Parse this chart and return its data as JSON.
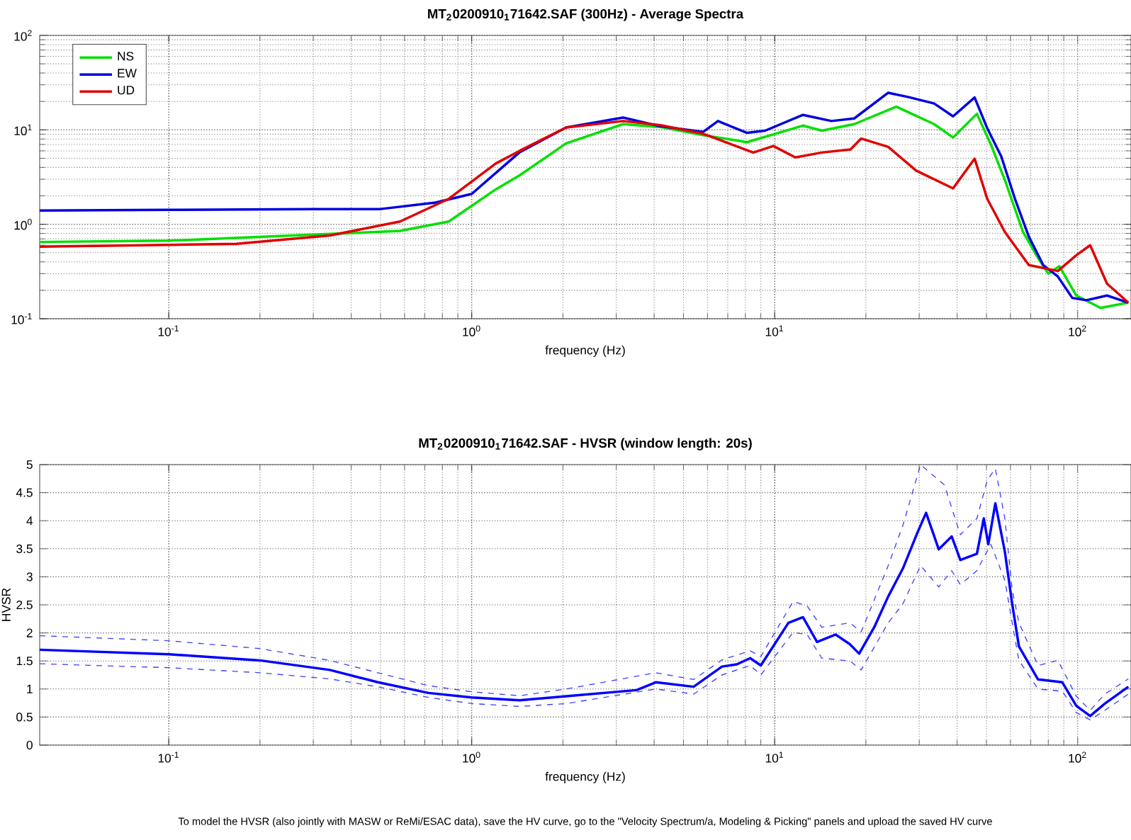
{
  "chart_data": [
    {
      "type": "line",
      "title": "MT$_{2}$0200910$_{1}$71642.SAF (300Hz) - Average Spectra",
      "xlabel": "frequency (Hz)",
      "log": "xy",
      "grid": true,
      "legend": "top left",
      "xlim": [
        0.0375,
        150
      ],
      "ylim": [
        0.1,
        100
      ],
      "xticks": [
        {
          "value": 0.1,
          "label": "10$^{-1}$"
        },
        {
          "value": 1,
          "label": "10$^{0}$"
        },
        {
          "value": 10,
          "label": "10$^{1}$"
        },
        {
          "value": 100,
          "label": "10$^{2}$"
        }
      ],
      "yticks": [
        {
          "value": 0.1,
          "label": "10$^{-1}$"
        },
        {
          "value": 1,
          "label": "10$^{0}$"
        },
        {
          "value": 10,
          "label": "10$^{1}$"
        },
        {
          "value": 100,
          "label": "10$^{2}$"
        }
      ],
      "series": [
        {
          "name": "NS",
          "color": "#00e000",
          "line_style": "solid",
          "x": [
            0.0375,
            0.1,
            0.34,
            0.58,
            0.84,
            1.2,
            1.44,
            2.05,
            3.16,
            4.2,
            5.8,
            8.1,
            12.4,
            14.3,
            18.3,
            25.2,
            33.6,
            38.8,
            46.5,
            51.7,
            57.5,
            66,
            74,
            80,
            87,
            99,
            119,
            147
          ],
          "values": [
            0.65,
            0.67,
            0.79,
            0.85,
            1.07,
            2.34,
            3.3,
            7.2,
            11.5,
            10.7,
            8.8,
            7.4,
            11.1,
            9.8,
            11.5,
            17.6,
            11.5,
            8.3,
            14.8,
            7,
            2.95,
            0.83,
            0.44,
            0.3,
            0.36,
            0.176,
            0.13,
            0.148
          ]
        },
        {
          "name": "EW",
          "color": "#0000e0",
          "line_style": "solid",
          "x": [
            0.0375,
            0.1,
            0.3,
            0.5,
            0.76,
            1.0,
            1.44,
            2.05,
            3.16,
            4.2,
            5.8,
            6.5,
            8.1,
            9.3,
            12.4,
            15.4,
            18.3,
            23.7,
            28,
            33.6,
            38.8,
            45.7,
            50.3,
            56,
            62.1,
            69,
            77,
            86,
            96,
            107,
            125,
            147
          ],
          "values": [
            1.4,
            1.42,
            1.45,
            1.45,
            1.7,
            2.1,
            5.8,
            10.6,
            13.5,
            10.9,
            9.5,
            12.4,
            9.3,
            9.8,
            14.4,
            12.4,
            13.2,
            24.7,
            22,
            19,
            13.9,
            22,
            10.4,
            5.2,
            1.86,
            0.74,
            0.37,
            0.28,
            0.166,
            0.157,
            0.176,
            0.148
          ]
        },
        {
          "name": "UD",
          "color": "#e00000",
          "line_style": "solid",
          "x": [
            0.0375,
            0.167,
            0.34,
            0.58,
            0.84,
            1.2,
            1.44,
            2.05,
            3.16,
            4.2,
            5.8,
            6.9,
            8.5,
            9.9,
            11.7,
            14.3,
            17.8,
            19.3,
            23.7,
            29.3,
            38.8,
            45.7,
            50.3,
            57.5,
            69,
            86,
            99,
            110,
            125,
            147
          ],
          "values": [
            0.58,
            0.62,
            0.76,
            1.07,
            1.86,
            4.4,
            6.0,
            10.6,
            12.4,
            11.2,
            9.1,
            7.4,
            5.75,
            6.75,
            5.1,
            5.75,
            6.2,
            8.1,
            6.6,
            3.7,
            2.4,
            4.95,
            1.86,
            0.83,
            0.37,
            0.32,
            0.47,
            0.6,
            0.235,
            0.148
          ]
        }
      ]
    },
    {
      "type": "line",
      "title": "MT$_{2}$0200910$_{1}$71642.SAF - HVSR (window length: 20s)",
      "xlabel": "frequency (Hz)",
      "ylabel": "HVSR",
      "log": "x",
      "grid": true,
      "xlim": [
        0.0375,
        150
      ],
      "ylim": [
        0,
        5
      ],
      "xticks": [
        {
          "value": 0.1,
          "label": "10$^{-1}$"
        },
        {
          "value": 1,
          "label": "10$^{0}$"
        },
        {
          "value": 10,
          "label": "10$^{1}$"
        },
        {
          "value": 100,
          "label": "10$^{2}$"
        }
      ],
      "yticks": [
        0,
        0.5,
        1,
        1.5,
        2,
        2.5,
        3,
        3.5,
        4,
        4.5,
        5
      ],
      "annotations": [
        "To model the HVSR (also jointly with MASW or ReMi/ESAC data), save the HV curve, go to the \"Velocity Spectrum/a, Modeling & Picking\" panels and upload the saved HV curve"
      ],
      "series": [
        {
          "color": "#0000ff",
          "line_style": "solid",
          "x": [
            0.0375,
            0.1,
            0.2,
            0.34,
            0.49,
            0.72,
            1.0,
            1.44,
            2.05,
            3.5,
            4.05,
            5.4,
            6.7,
            7.5,
            8.3,
            9.0,
            11.1,
            12.4,
            13.8,
            15.9,
            17.7,
            19.0,
            21.3,
            23.7,
            26.5,
            29.6,
            31.6,
            34.8,
            38.4,
            41,
            46.5,
            49,
            50.7,
            53.5,
            57.5,
            60.8,
            64,
            74,
            89,
            99,
            110,
            123,
            147
          ],
          "values": [
            1.7,
            1.62,
            1.51,
            1.34,
            1.12,
            0.93,
            0.85,
            0.8,
            0.87,
            0.98,
            1.12,
            1.04,
            1.4,
            1.44,
            1.55,
            1.42,
            2.18,
            2.28,
            1.84,
            1.97,
            1.8,
            1.63,
            2.1,
            2.65,
            3.15,
            3.79,
            4.14,
            3.49,
            3.72,
            3.3,
            3.41,
            4.04,
            3.58,
            4.31,
            3.45,
            2.52,
            1.76,
            1.17,
            1.12,
            0.7,
            0.52,
            0.74,
            1.04
          ]
        },
        {
          "color": "#4040ff",
          "line_style": "dashed",
          "x": [
            0.0375,
            0.1,
            0.2,
            0.34,
            0.49,
            0.72,
            1.0,
            1.44,
            2.05,
            4.05,
            5.4,
            6.7,
            8.3,
            9.0,
            11.5,
            12.8,
            14.3,
            17.7,
            19.3,
            23.7,
            26.5,
            30.3,
            32,
            36.3,
            41,
            46.5,
            50.3,
            53.5,
            57.5,
            60.8,
            64,
            74,
            86,
            99,
            110,
            123,
            147
          ],
          "values": [
            1.95,
            1.86,
            1.72,
            1.51,
            1.29,
            1.06,
            0.95,
            0.88,
            1.0,
            1.29,
            1.17,
            1.52,
            1.68,
            1.58,
            2.56,
            2.48,
            2.1,
            2.18,
            2.02,
            3.2,
            3.92,
            5.0,
            4.89,
            4.64,
            3.75,
            4.04,
            4.72,
            4.93,
            4.04,
            2.77,
            2.18,
            1.42,
            1.51,
            0.87,
            0.62,
            0.91,
            1.18
          ]
        },
        {
          "color": "#4040ff",
          "line_style": "dashed",
          "x": [
            0.0375,
            0.1,
            0.2,
            0.34,
            0.49,
            0.72,
            1.0,
            1.44,
            2.05,
            4.05,
            5.4,
            6.7,
            8.3,
            9.0,
            11.5,
            12.8,
            14.3,
            17.7,
            19.3,
            23.7,
            26.5,
            30.3,
            34.8,
            38.4,
            41,
            46.5,
            51.7,
            57.5,
            60.8,
            64,
            74,
            89,
            99,
            110,
            123,
            147
          ],
          "values": [
            1.45,
            1.38,
            1.29,
            1.18,
            1.04,
            0.85,
            0.74,
            0.69,
            0.74,
            1.0,
            0.91,
            1.25,
            1.42,
            1.25,
            2.01,
            1.97,
            1.55,
            1.5,
            1.34,
            2.18,
            2.52,
            3.2,
            2.82,
            3.11,
            2.86,
            3.11,
            3.58,
            2.94,
            2.18,
            1.51,
            1.0,
            0.96,
            0.58,
            0.45,
            0.62,
            0.91
          ]
        }
      ]
    }
  ]
}
